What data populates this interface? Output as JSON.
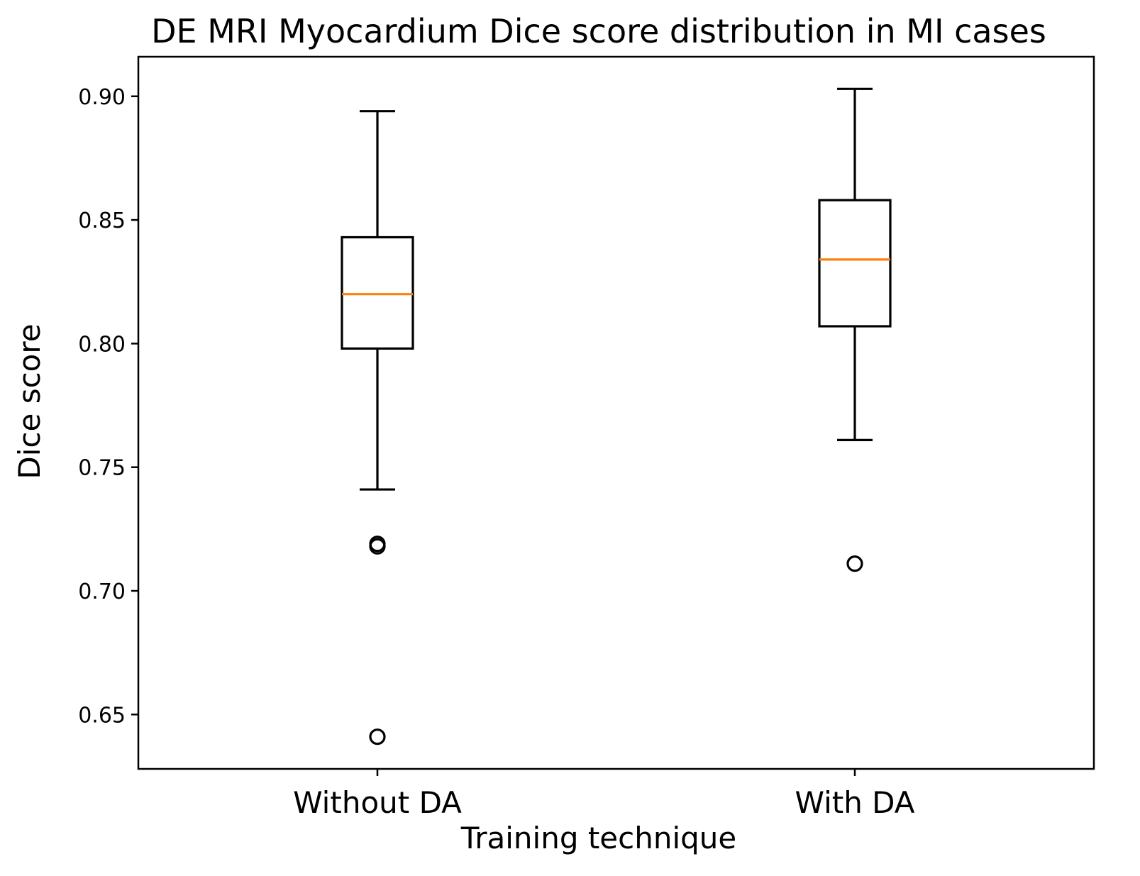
{
  "chart_data": {
    "type": "box",
    "title": "DE MRI Myocardium Dice score distribution in MI cases",
    "xlabel": "Training technique",
    "ylabel": "Dice score",
    "ylim": [
      0.628,
      0.916
    ],
    "yticks": [
      0.65,
      0.7,
      0.75,
      0.8,
      0.85,
      0.9
    ],
    "ytick_labels": [
      "0.65",
      "0.70",
      "0.75",
      "0.80",
      "0.85",
      "0.90"
    ],
    "categories": [
      "Without DA",
      "With DA"
    ],
    "boxes": [
      {
        "name": "Without DA",
        "whisker_low": 0.741,
        "q1": 0.798,
        "median": 0.82,
        "q3": 0.843,
        "whisker_high": 0.894,
        "outliers": [
          0.718,
          0.719,
          0.641
        ]
      },
      {
        "name": "With DA",
        "whisker_low": 0.761,
        "q1": 0.807,
        "median": 0.834,
        "q3": 0.858,
        "whisker_high": 0.903,
        "outliers": [
          0.711
        ]
      }
    ],
    "colors": {
      "box": "#000000",
      "median": "#ff7f0e",
      "background": "#ffffff"
    }
  }
}
